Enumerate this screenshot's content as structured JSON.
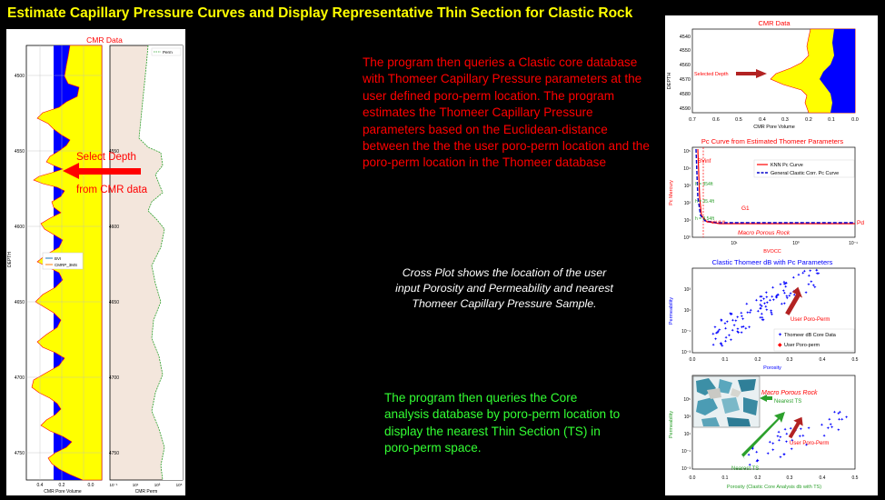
{
  "slide": {
    "title": "Estimate Capillary Pressure Curves and Display Representative Thin Section for Clastic Rock",
    "text_red": "The program then queries a Clastic  core database with Thomeer Capillary Pressure parameters at the user defined poro-perm location. The program estimates the Thomeer Capillary Pressure parameters based on the Euclidean-distance between the the the user poro-perm location and the poro-perm location in the Thomeer database",
    "text_white": "Cross Plot shows the location of the user input Porosity and Permeability and nearest Thomeer Capillary Pressure Sample.",
    "text_green": "The program then queries the  Core analysis database by poro-perm location to display the nearest Thin Section (TS) in poro-perm space."
  },
  "log_panel": {
    "title": "CMR Data",
    "depth_label": "DEPTH",
    "depth_ticks": [
      "4500",
      "4550",
      "4600",
      "4650",
      "4700",
      "4750"
    ],
    "track1_xlabel": "CMR Pore Volume",
    "track1_ticks": [
      "0.4",
      "0.2",
      "0.0"
    ],
    "track2_xlabel": "CMR Perm",
    "track2_ticks": [
      "10⁻¹",
      "10¹",
      "10³",
      "10⁵"
    ],
    "perm_legend": "Perm",
    "legend_bvi": "BVI",
    "legend_cmrp": "CMRP_3MS",
    "select_depth_line1": "Select Depth",
    "select_depth_line2": "from CMR data",
    "colors": {
      "bvi_fill": "#ffff00",
      "ffi_fill": "#0000ff",
      "perm_line": "#2ca02c",
      "perm_fill": "#f3e6dc",
      "annotation": "#ff0000"
    }
  },
  "cmr_small": {
    "title": "CMR Data",
    "ylabel": "DEPTH",
    "xlabel": "CMR Pore Volume",
    "x_ticks": [
      "0.7",
      "0.6",
      "0.5",
      "0.4",
      "0.3",
      "0.2",
      "0.1",
      "0.0"
    ],
    "y_ticks": [
      "4540",
      "4550",
      "4560",
      "4570",
      "4580",
      "4590"
    ],
    "annotation": "Selected Depth"
  },
  "pc_chart": {
    "title": "Pc Curve from Estimated Thomeer Parameters",
    "xlabel": "BVOCC",
    "ylabel": "Pc Mercury",
    "legend_knn": "KNN Pc Curve",
    "legend_general": "General Clastic Corr. Pc Curve",
    "label_bvinf": "BVinf",
    "label_g1": "G1",
    "label_pd": "Pd",
    "label_rock": "Macro Porous Rock",
    "h_labels": [
      "h = 354ft",
      "h = 35.4ft",
      "h = 3.54ft",
      "height @ fit"
    ],
    "x_ticks": [
      "10¹",
      "10⁰",
      "10⁻¹"
    ],
    "y_ticks": [
      "10⁰",
      "10¹",
      "10²",
      "10³",
      "10⁴",
      "10⁵"
    ]
  },
  "cross_plot": {
    "title": "Clastic Thomeer dB with Pc Parameters",
    "xlabel": "Porosity",
    "ylabel": "Permeability",
    "legend_db": "Thomeer dB Core Data",
    "legend_user": "User Poro-perm",
    "annotation": "User Poro-Perm",
    "x_ticks": [
      "0.0",
      "0.1",
      "0.2",
      "0.3",
      "0.4",
      "0.5"
    ],
    "y_ticks": [
      "10⁻³",
      "10⁻¹",
      "10¹",
      "10³"
    ]
  },
  "ts_plot": {
    "xlabel": "Porosity (Clastic Core Analysis db with TS)",
    "ylabel": "Permeability",
    "label_rock": "Macro Porous Rock",
    "label_nearest_top": "Nearest TS",
    "label_nearest_bottom": "Nearest TS",
    "annotation": "User Poro-Perm",
    "x_ticks": [
      "0.0",
      "0.1",
      "0.2",
      "0.3",
      "0.4",
      "0.5"
    ],
    "y_ticks": [
      "10⁻³",
      "10⁻¹",
      "10¹",
      "10³",
      "10⁵"
    ]
  }
}
